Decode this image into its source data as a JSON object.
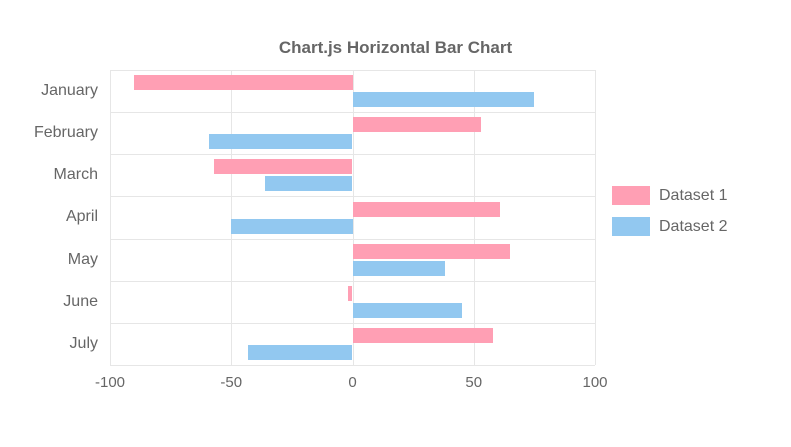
{
  "chart_data": {
    "type": "bar",
    "orientation": "horizontal",
    "title": "Chart.js Horizontal Bar Chart",
    "categories": [
      "January",
      "February",
      "March",
      "April",
      "May",
      "June",
      "July"
    ],
    "series": [
      {
        "name": "Dataset 1",
        "color": "#ff9fb4",
        "values": [
          -90,
          53,
          -57,
          61,
          65,
          -2,
          58
        ]
      },
      {
        "name": "Dataset 2",
        "color": "#92c8f0",
        "values": [
          75,
          -59,
          -36,
          -50,
          38,
          45,
          -43
        ]
      }
    ],
    "xlabel": "",
    "ylabel": "",
    "xlim": [
      -100,
      100
    ],
    "xticks": [
      -100,
      -50,
      0,
      50,
      100
    ],
    "grid": true,
    "legend_position": "right"
  },
  "colors": {
    "grid": "#e6e6e6",
    "text": "#666666",
    "background": "#ffffff"
  }
}
